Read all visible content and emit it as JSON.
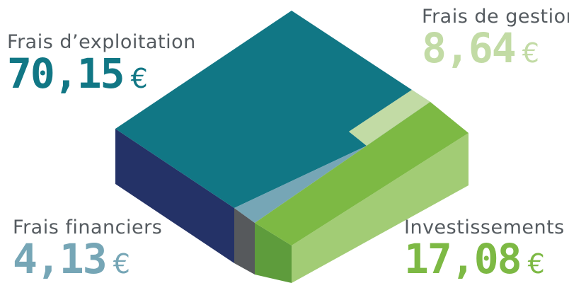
{
  "chart_data": {
    "type": "treemap",
    "currency": "€",
    "segments": [
      {
        "label": "Frais d’exploitation",
        "value": 70.15,
        "display": "70,15",
        "color": "#117785"
      },
      {
        "label": "Frais de gestion",
        "value": 8.64,
        "display": "8,64",
        "color": "#c2dba5"
      },
      {
        "label": "Frais financiers",
        "value": 4.13,
        "display": "4,13",
        "color": "#76a6b6"
      },
      {
        "label": "Investissements",
        "value": 17.08,
        "display": "17,08",
        "color": "#7db944"
      }
    ],
    "side_colors": {
      "exploitation": "#243267",
      "financiers": "#56595c",
      "invest_left": "#5e9c3c",
      "invest_right": "#a2cc75"
    }
  }
}
